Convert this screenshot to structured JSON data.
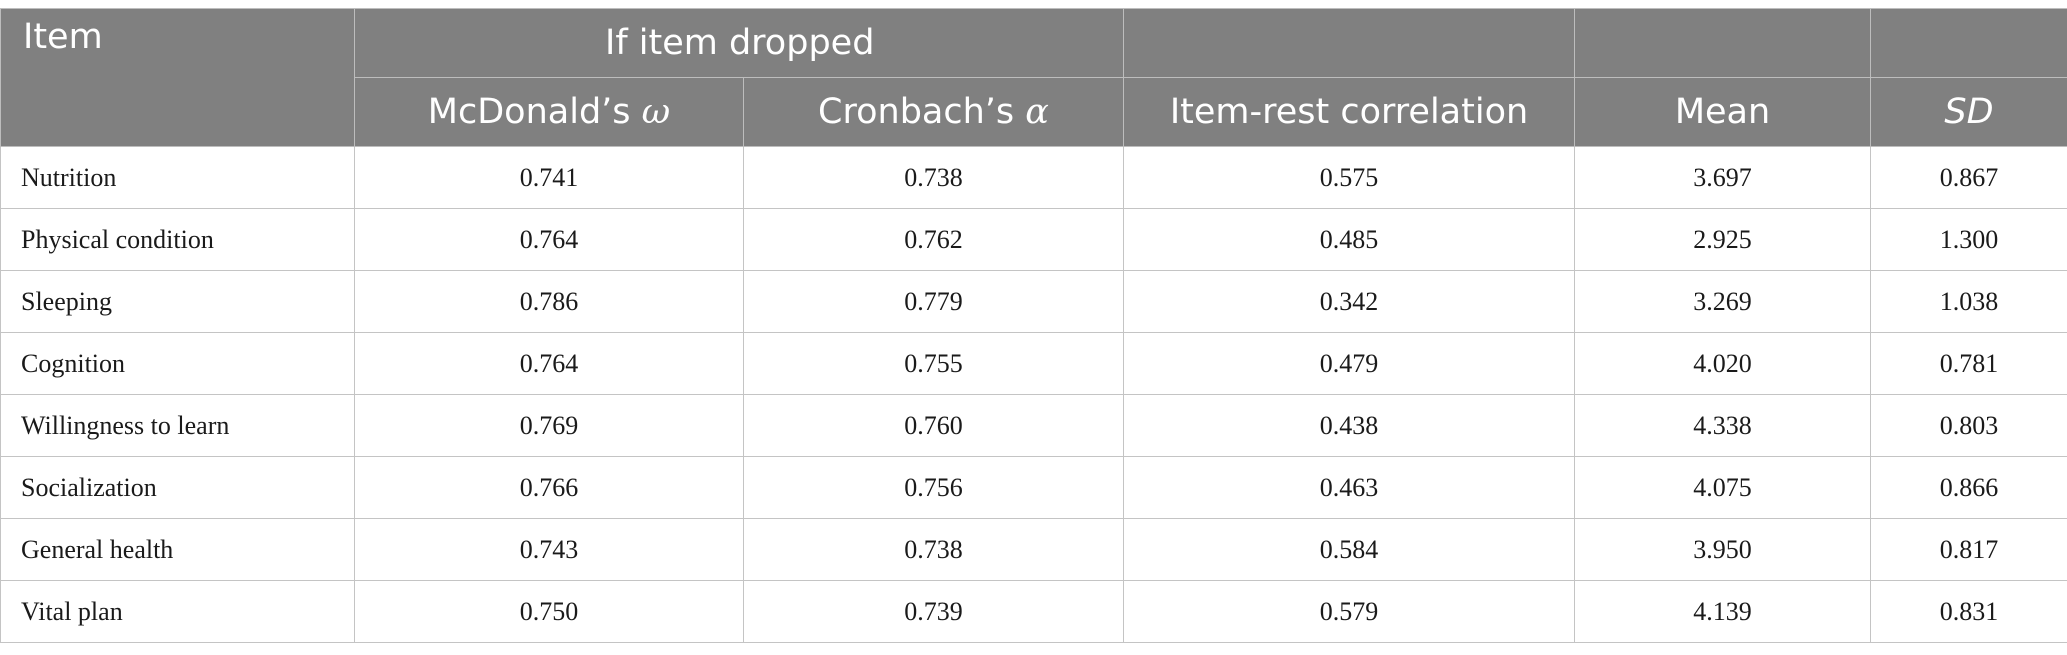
{
  "table": {
    "header": {
      "item": "Item",
      "group": "If item dropped",
      "omega_label": "McDonald’s",
      "omega_symbol": "ω",
      "alpha_label": "Cronbach’s",
      "alpha_symbol": "α",
      "item_rest": "Item-rest correlation",
      "mean": "Mean",
      "sd": "SD"
    },
    "rows": [
      {
        "item": "Nutrition",
        "omega": "0.741",
        "alpha": "0.738",
        "irc": "0.575",
        "mean": "3.697",
        "sd": "0.867"
      },
      {
        "item": "Physical condition",
        "omega": "0.764",
        "alpha": "0.762",
        "irc": "0.485",
        "mean": "2.925",
        "sd": "1.300"
      },
      {
        "item": "Sleeping",
        "omega": "0.786",
        "alpha": "0.779",
        "irc": "0.342",
        "mean": "3.269",
        "sd": "1.038"
      },
      {
        "item": "Cognition",
        "omega": "0.764",
        "alpha": "0.755",
        "irc": "0.479",
        "mean": "4.020",
        "sd": "0.781"
      },
      {
        "item": "Willingness to learn",
        "omega": "0.769",
        "alpha": "0.760",
        "irc": "0.438",
        "mean": "4.338",
        "sd": "0.803"
      },
      {
        "item": "Socialization",
        "omega": "0.766",
        "alpha": "0.756",
        "irc": "0.463",
        "mean": "4.075",
        "sd": "0.866"
      },
      {
        "item": "General health",
        "omega": "0.743",
        "alpha": "0.738",
        "irc": "0.584",
        "mean": "3.950",
        "sd": "0.817"
      },
      {
        "item": "Vital plan",
        "omega": "0.750",
        "alpha": "0.739",
        "irc": "0.579",
        "mean": "4.139",
        "sd": "0.831"
      }
    ]
  }
}
